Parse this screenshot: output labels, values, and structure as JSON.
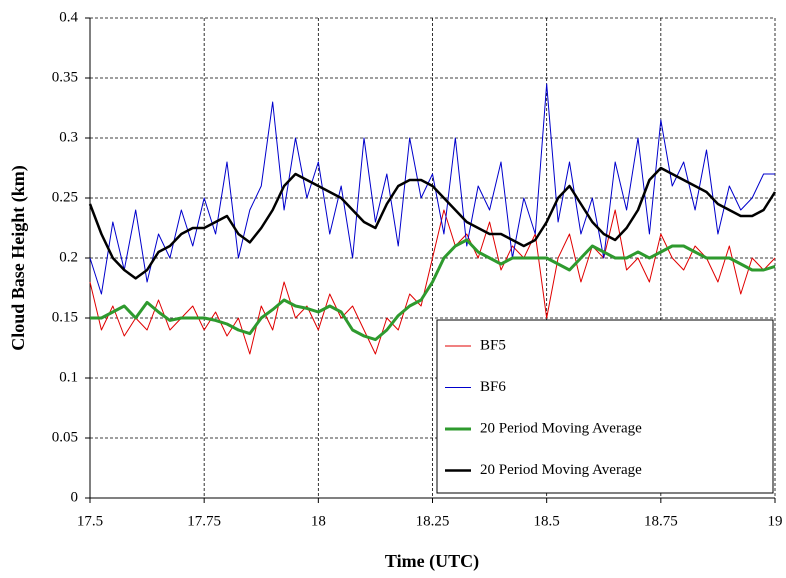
{
  "chart_data": {
    "type": "line",
    "xlabel": "Time (UTC)",
    "ylabel": "Cloud Base Height (km)",
    "x": [
      17.5,
      17.525,
      17.55,
      17.575,
      17.6,
      17.625,
      17.65,
      17.675,
      17.7,
      17.725,
      17.75,
      17.775,
      17.8,
      17.825,
      17.85,
      17.875,
      17.9,
      17.925,
      17.95,
      17.975,
      18,
      18.025,
      18.05,
      18.075,
      18.1,
      18.125,
      18.15,
      18.175,
      18.2,
      18.225,
      18.25,
      18.275,
      18.3,
      18.325,
      18.35,
      18.375,
      18.4,
      18.425,
      18.45,
      18.475,
      18.5,
      18.525,
      18.55,
      18.575,
      18.6,
      18.625,
      18.65,
      18.675,
      18.7,
      18.725,
      18.75,
      18.775,
      18.8,
      18.825,
      18.85,
      18.875,
      18.9,
      18.925,
      18.95,
      18.975,
      19
    ],
    "series": [
      {
        "name": "BF5",
        "color": "#e00000",
        "width": 1,
        "values": [
          0.18,
          0.14,
          0.16,
          0.135,
          0.15,
          0.14,
          0.165,
          0.14,
          0.15,
          0.16,
          0.14,
          0.155,
          0.135,
          0.15,
          0.12,
          0.16,
          0.14,
          0.18,
          0.15,
          0.16,
          0.14,
          0.17,
          0.15,
          0.16,
          0.14,
          0.12,
          0.15,
          0.14,
          0.17,
          0.16,
          0.2,
          0.24,
          0.21,
          0.22,
          0.2,
          0.23,
          0.19,
          0.21,
          0.2,
          0.22,
          0.15,
          0.2,
          0.22,
          0.18,
          0.21,
          0.2,
          0.24,
          0.19,
          0.2,
          0.18,
          0.22,
          0.2,
          0.19,
          0.21,
          0.2,
          0.18,
          0.21,
          0.17,
          0.2,
          0.19,
          0.2
        ]
      },
      {
        "name": "BF6",
        "color": "#0000cc",
        "width": 1,
        "values": [
          0.2,
          0.17,
          0.23,
          0.19,
          0.24,
          0.18,
          0.22,
          0.2,
          0.24,
          0.21,
          0.25,
          0.22,
          0.28,
          0.2,
          0.24,
          0.26,
          0.33,
          0.24,
          0.3,
          0.25,
          0.28,
          0.22,
          0.26,
          0.2,
          0.3,
          0.23,
          0.27,
          0.21,
          0.3,
          0.25,
          0.27,
          0.22,
          0.3,
          0.21,
          0.26,
          0.24,
          0.28,
          0.2,
          0.25,
          0.22,
          0.345,
          0.23,
          0.28,
          0.22,
          0.25,
          0.2,
          0.28,
          0.24,
          0.3,
          0.22,
          0.315,
          0.26,
          0.28,
          0.24,
          0.29,
          0.22,
          0.26,
          0.24,
          0.25,
          0.27,
          0.27
        ]
      },
      {
        "name": "20 Period Moving Average",
        "color": "#2e9a2e",
        "width": 3,
        "values": [
          0.15,
          0.15,
          0.155,
          0.16,
          0.15,
          0.163,
          0.155,
          0.148,
          0.15,
          0.15,
          0.15,
          0.148,
          0.145,
          0.14,
          0.137,
          0.15,
          0.157,
          0.165,
          0.16,
          0.158,
          0.155,
          0.16,
          0.155,
          0.14,
          0.135,
          0.132,
          0.14,
          0.152,
          0.16,
          0.165,
          0.18,
          0.2,
          0.21,
          0.215,
          0.205,
          0.2,
          0.195,
          0.2,
          0.2,
          0.2,
          0.2,
          0.195,
          0.19,
          0.2,
          0.21,
          0.205,
          0.2,
          0.2,
          0.205,
          0.2,
          0.205,
          0.21,
          0.21,
          0.205,
          0.2,
          0.2,
          0.2,
          0.195,
          0.19,
          0.19,
          0.193
        ]
      },
      {
        "name": "20 Period Moving Average",
        "color": "#000000",
        "width": 2.5,
        "values": [
          0.245,
          0.22,
          0.2,
          0.19,
          0.183,
          0.19,
          0.205,
          0.21,
          0.22,
          0.225,
          0.225,
          0.23,
          0.235,
          0.22,
          0.213,
          0.225,
          0.24,
          0.26,
          0.27,
          0.265,
          0.26,
          0.255,
          0.25,
          0.24,
          0.23,
          0.225,
          0.245,
          0.26,
          0.265,
          0.265,
          0.26,
          0.25,
          0.24,
          0.23,
          0.225,
          0.22,
          0.22,
          0.215,
          0.21,
          0.215,
          0.23,
          0.25,
          0.26,
          0.245,
          0.23,
          0.22,
          0.215,
          0.225,
          0.24,
          0.265,
          0.275,
          0.27,
          0.265,
          0.26,
          0.255,
          0.245,
          0.24,
          0.235,
          0.235,
          0.24,
          0.255
        ]
      }
    ],
    "xlim": [
      17.5,
      19
    ],
    "xticks": [
      17.5,
      17.75,
      18,
      18.25,
      18.5,
      18.75,
      19
    ],
    "ylim": [
      0,
      0.4
    ],
    "yticks": [
      0,
      0.05,
      0.1,
      0.15,
      0.2,
      0.25,
      0.3,
      0.35,
      0.4
    ],
    "grid": true,
    "legend": "lower right"
  }
}
